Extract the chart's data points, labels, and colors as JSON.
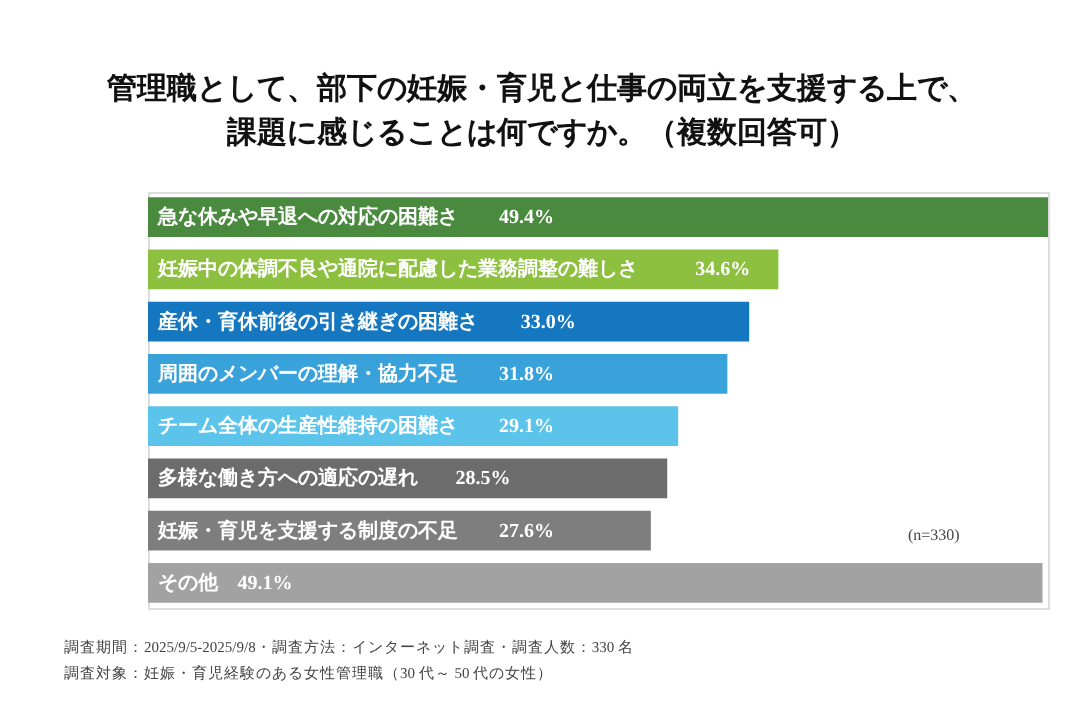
{
  "chart_data": {
    "type": "bar",
    "orientation": "horizontal",
    "title": [
      "管理職として、部下の妊娠・育児と仕事の両立を支援する上で、",
      "課題に感じることは何ですか。（複数回答可）"
    ],
    "categories": [
      "急な休みや早退への対応の困難さ",
      "妊娠中の体調不良や通院に配慮した業務調整の難しさ",
      "産休・育休前後の引き継ぎの困難さ",
      "周囲のメンバーの理解・協力不足",
      "チーム全体の生産性維持の困難さ",
      "多様な働き方への適応の遅れ",
      "妊娠・育児を支援する制度の不足",
      "その他"
    ],
    "values": [
      49.4,
      34.6,
      33.0,
      31.8,
      29.1,
      28.5,
      27.6,
      49.1
    ],
    "value_labels": [
      "49.4%",
      "34.6%",
      "33.0%",
      "31.8%",
      "29.1%",
      "28.5%",
      "27.6%",
      "49.1%"
    ],
    "colors": [
      "#4a8a3e",
      "#8cc03e",
      "#1677c1",
      "#3aa2db",
      "#5cc3eb",
      "#6c6c6c",
      "#7e7e7e",
      "#a2a2a2"
    ],
    "tick_labels": false,
    "annotations": [
      "(n=330)",
      "調査期間：2025/9/5-2025/9/8・調査方法：インターネット調査・調査人数：330 名",
      "調査対象：妊娠・育児経験のある女性管理職（30 代～ 50 代の女性）"
    ]
  }
}
